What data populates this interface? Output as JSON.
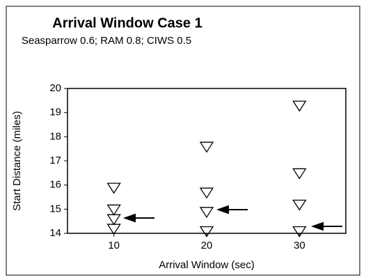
{
  "chart_data": {
    "type": "scatter",
    "title": "Arrival Window Case 1",
    "subtitle": "Seasparrow 0.6; RAM 0.8; CIWS 0.5",
    "x_label": "Arrival Window (sec)",
    "y_label": "Start Distance (miles)",
    "x": [
      10,
      10,
      10,
      10,
      20,
      20,
      20,
      20,
      30,
      30,
      30,
      30
    ],
    "values": [
      15.9,
      15.0,
      14.6,
      14.2,
      17.6,
      15.7,
      14.9,
      14.1,
      19.3,
      16.5,
      15.2,
      14.1
    ],
    "color": "#000000",
    "xlim": [
      5,
      35
    ],
    "xticks": [
      10,
      20,
      30
    ],
    "ylim": [
      14,
      20
    ],
    "yticks": [
      14,
      15,
      16,
      17,
      18,
      19,
      20
    ],
    "grid": false
  }
}
